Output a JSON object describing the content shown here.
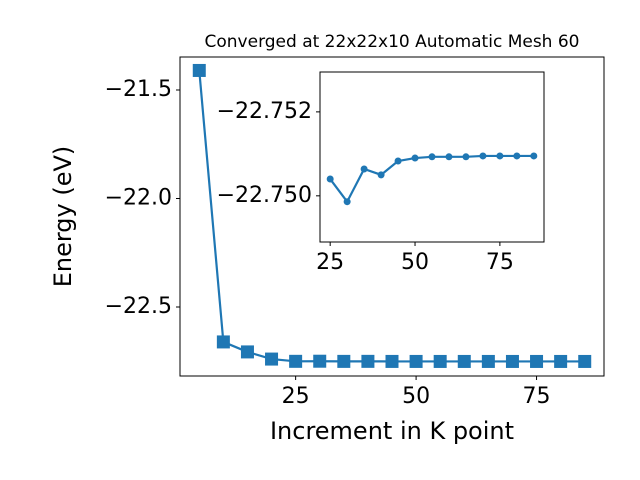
{
  "chart_data": [
    {
      "type": "line",
      "title": "Converged at 22x22x10 Automatic Mesh 60",
      "xlabel": "Increment in K point",
      "ylabel": "Energy (eV)",
      "x": [
        5,
        10,
        15,
        20,
        25,
        30,
        35,
        40,
        45,
        50,
        55,
        60,
        65,
        70,
        75,
        80,
        85
      ],
      "series": [
        {
          "color": "#1f77b4",
          "marker": "square",
          "values": [
            -21.41,
            -22.661,
            -22.707,
            -22.74,
            -22.7504,
            -22.74986,
            -22.75064,
            -22.7505,
            -22.75083,
            -22.7509,
            -22.75093,
            -22.75093,
            -22.75093,
            -22.75095,
            -22.75095,
            -22.75095,
            -22.75095
          ]
        }
      ],
      "xlim": [
        1,
        89
      ],
      "ylim": [
        -22.818,
        -21.348
      ],
      "xticks": [
        25,
        50,
        75
      ],
      "yticks": [
        {
          "value": -21.5,
          "label": "−21.5"
        },
        {
          "value": -22.0,
          "label": "−22.0"
        },
        {
          "value": -22.5,
          "label": "−22.5"
        }
      ]
    },
    {
      "type": "line",
      "x": [
        25,
        30,
        35,
        40,
        45,
        50,
        55,
        60,
        65,
        70,
        75,
        80,
        85
      ],
      "series": [
        {
          "color": "#1f77b4",
          "marker": "circle",
          "values": [
            -22.7504,
            -22.74986,
            -22.75064,
            -22.7505,
            -22.75083,
            -22.7509,
            -22.75093,
            -22.75093,
            -22.75093,
            -22.75095,
            -22.75095,
            -22.75095,
            -22.75095
          ]
        }
      ],
      "xlim": [
        22,
        88
      ],
      "ylim": [
        -22.7489,
        -22.75295
      ],
      "xticks": [
        25,
        50,
        75
      ],
      "yticks": [
        {
          "value": -22.752,
          "label": "−22.752"
        },
        {
          "value": -22.75,
          "label": "−22.750"
        }
      ]
    }
  ]
}
